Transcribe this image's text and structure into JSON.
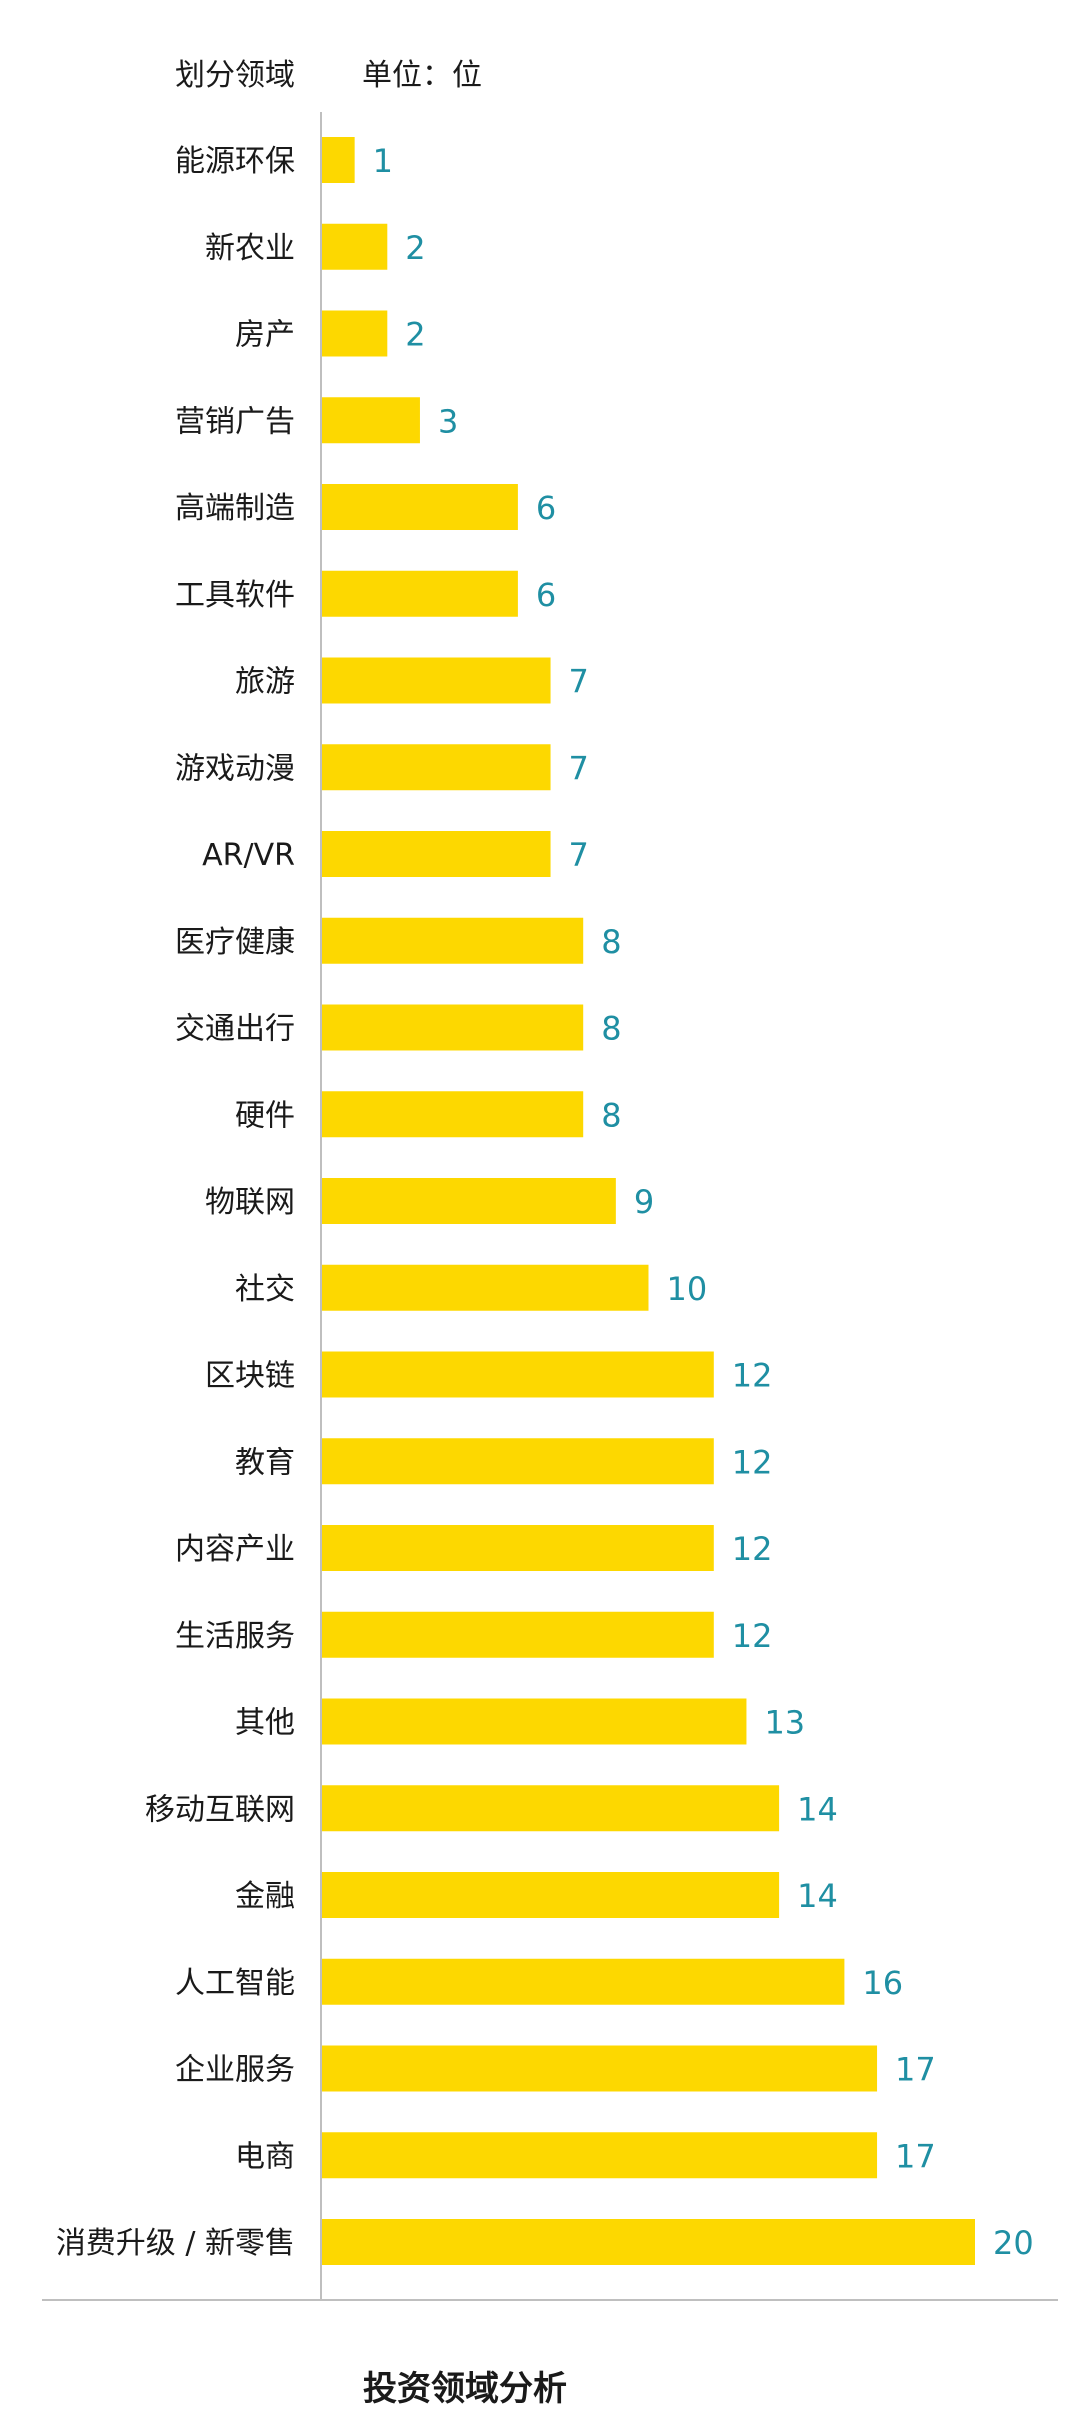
{
  "chart_data": {
    "type": "bar",
    "orientation": "horizontal",
    "title": "投资领域分析",
    "category_header": "划分领域",
    "unit_label": "单位：位",
    "categories": [
      "能源环保",
      "新农业",
      "房产",
      "营销广告",
      "高端制造",
      "工具软件",
      "旅游",
      "游戏动漫",
      "AR/VR",
      "医疗健康",
      "交通出行",
      "硬件",
      "物联网",
      "社交",
      "区块链",
      "教育",
      "内容产业",
      "生活服务",
      "其他",
      "移动互联网",
      "金融",
      "人工智能",
      "企业服务",
      "电商",
      "消费升级 / 新零售"
    ],
    "values": [
      1,
      2,
      2,
      3,
      6,
      6,
      7,
      7,
      7,
      8,
      8,
      8,
      9,
      10,
      12,
      12,
      12,
      12,
      13,
      14,
      14,
      16,
      17,
      17,
      20
    ],
    "xlim": [
      0,
      20
    ],
    "grid": false,
    "bar_color": "#FDD800",
    "value_label_color": "#1F8FA3",
    "axis_color": "#BFBFBF"
  }
}
